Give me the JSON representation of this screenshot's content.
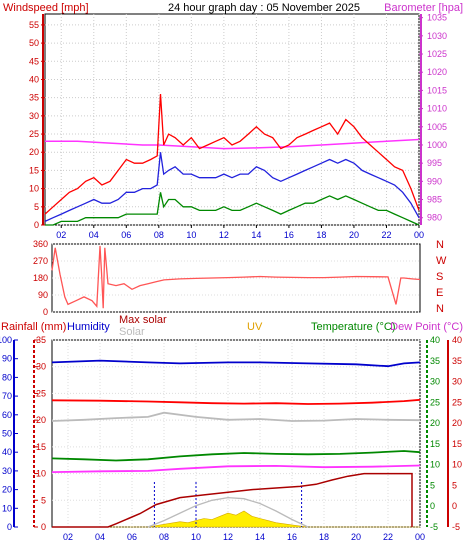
{
  "header": {
    "left_label": "Windspeed [mph]",
    "title": "24 hour graph day : 05 November 2025",
    "right_label": "Barometer [hpa]"
  },
  "labels": {
    "rainfall": "Rainfall (mm)",
    "humidity": "Humidity",
    "max_solar": "Max solar",
    "solar": "Solar",
    "uv": "UV",
    "temperature": "Temperature (°C)",
    "dew_point": "Dew Point (°C)"
  },
  "colors": {
    "wind_gust": "#ff0000",
    "wind_avg": "#2222dd",
    "wind_min": "#008800",
    "barometer": "#ff33ff",
    "direction": "#ff5555",
    "rain_axis": "#cc0000",
    "humidity": "#0000cc",
    "temperature": "#008800",
    "dew_point": "#ff0000",
    "solar": "#bbbbbb",
    "max_solar": "#aa0000",
    "uv": "#e0a000",
    "solar_fill": "#ffee00",
    "background": "#ffffff",
    "plot_bg": "#ffffff"
  },
  "chart_data": [
    {
      "type": "line",
      "panel": "wind",
      "x_ticks": [
        "02",
        "04",
        "06",
        "08",
        "10",
        "12",
        "14",
        "16",
        "18",
        "20",
        "22",
        "00"
      ],
      "y_left_ticks": [
        "0",
        "5",
        "10",
        "15",
        "20",
        "25",
        "30",
        "35",
        "40",
        "45",
        "50",
        "55"
      ],
      "y_left_range": [
        0,
        58
      ],
      "y_right_ticks": [
        "980",
        "985",
        "990",
        "995",
        "1000",
        "1005",
        "1010",
        "1015",
        "1020",
        "1025",
        "1030",
        "1035"
      ],
      "y_right_range": [
        978,
        1036
      ],
      "x_range": [
        1,
        24
      ],
      "series": [
        {
          "name": "Windspeed",
          "x": [
            1,
            1.5,
            2,
            2.5,
            3,
            3.5,
            4,
            4.5,
            5,
            5.5,
            6,
            6.5,
            7,
            7.5,
            7.9,
            8.1,
            8.3,
            8.6,
            9,
            9.5,
            10,
            10.5,
            11,
            11.5,
            12,
            12.5,
            13,
            13.5,
            14,
            14.5,
            15,
            15.5,
            16,
            16.5,
            17,
            17.5,
            18,
            18.5,
            19,
            19.5,
            20,
            20.5,
            21,
            21.5,
            22,
            22.5,
            23,
            23.5,
            24
          ],
          "y": [
            3,
            5,
            7,
            9,
            10,
            12,
            13,
            11,
            12,
            15,
            18,
            17,
            17,
            18,
            19,
            36,
            22,
            25,
            24,
            22,
            24,
            21,
            22,
            23,
            24,
            22,
            23,
            25,
            27,
            25,
            24,
            21,
            22,
            24,
            25,
            26,
            27,
            28,
            25,
            29,
            27,
            24,
            22,
            20,
            18,
            16,
            15,
            10,
            4
          ]
        },
        {
          "name": "Avg",
          "x": [
            1,
            1.5,
            2,
            2.5,
            3,
            3.5,
            4,
            4.5,
            5,
            5.5,
            6,
            6.5,
            7,
            7.5,
            7.9,
            8.1,
            8.3,
            8.6,
            9,
            9.5,
            10,
            10.5,
            11,
            11.5,
            12,
            12.5,
            13,
            13.5,
            14,
            14.5,
            15,
            15.5,
            16,
            16.5,
            17,
            17.5,
            18,
            18.5,
            19,
            19.5,
            20,
            20.5,
            21,
            21.5,
            22,
            22.5,
            23,
            23.5,
            24
          ],
          "y": [
            1,
            2,
            3,
            4,
            5,
            6,
            7,
            6,
            6,
            7,
            9,
            9,
            10,
            10,
            11,
            20,
            14,
            15,
            16,
            14,
            14,
            13,
            13,
            13,
            14,
            13,
            14,
            14,
            16,
            15,
            13,
            12,
            13,
            14,
            15,
            16,
            17,
            18,
            17,
            18,
            17,
            15,
            14,
            13,
            12,
            11,
            9,
            6,
            2
          ]
        },
        {
          "name": "Min",
          "x": [
            1,
            1.5,
            2,
            2.5,
            3,
            3.5,
            4,
            4.5,
            5,
            5.5,
            6,
            6.5,
            7,
            7.5,
            7.9,
            8.1,
            8.3,
            8.6,
            9,
            9.5,
            10,
            10.5,
            11,
            11.5,
            12,
            12.5,
            13,
            13.5,
            14,
            14.5,
            15,
            15.5,
            16,
            16.5,
            17,
            17.5,
            18,
            18.5,
            19,
            19.5,
            20,
            20.5,
            21,
            21.5,
            22,
            22.5,
            23,
            23.5,
            24
          ],
          "y": [
            0,
            0,
            1,
            1,
            1,
            2,
            2,
            2,
            2,
            2,
            3,
            3,
            3,
            3,
            3,
            9,
            5,
            7,
            7,
            5,
            5,
            4,
            4,
            4,
            5,
            4,
            4,
            5,
            6,
            5,
            4,
            3,
            4,
            5,
            6,
            6,
            7,
            8,
            7,
            8,
            7,
            6,
            5,
            4,
            4,
            3,
            2,
            1,
            0
          ]
        },
        {
          "name": "Barometer",
          "axis": "right",
          "x": [
            1,
            3,
            5,
            7,
            8,
            10,
            12,
            14,
            16,
            18,
            20,
            22,
            24
          ],
          "y": [
            1001,
            1001,
            1000.5,
            1000,
            1000,
            999.5,
            999,
            999.2,
            999.5,
            1000,
            1000.5,
            1001,
            1001.5
          ]
        }
      ]
    },
    {
      "type": "line",
      "panel": "wind_direction",
      "y_ticks": [
        "360",
        "270",
        "180",
        "90",
        "0"
      ],
      "y_range": [
        0,
        360
      ],
      "compass": [
        "N",
        "W",
        "S",
        "E",
        "N"
      ],
      "series": [
        {
          "name": "Direction",
          "x": [
            1,
            1.2,
            1.5,
            1.8,
            2,
            2.5,
            3,
            3.5,
            3.8,
            4,
            4.1,
            4.2,
            4.3,
            4.5,
            5,
            5.5,
            6,
            6.5,
            7,
            7.5,
            8,
            9,
            10,
            11,
            12,
            13,
            14,
            15,
            16,
            17,
            18,
            19,
            20,
            21,
            22,
            22.5,
            22.8,
            23,
            23.5,
            24
          ],
          "y": [
            220,
            340,
            200,
            80,
            40,
            60,
            80,
            60,
            30,
            350,
            200,
            20,
            340,
            150,
            140,
            150,
            120,
            140,
            150,
            160,
            170,
            175,
            178,
            180,
            182,
            185,
            188,
            185,
            183,
            182,
            182,
            185,
            188,
            187,
            186,
            40,
            180,
            180,
            175,
            172
          ]
        }
      ]
    },
    {
      "type": "line",
      "panel": "temperature_humidity",
      "x_ticks": [
        "02",
        "04",
        "06",
        "08",
        "10",
        "12",
        "14",
        "16",
        "18",
        "20",
        "22",
        "00"
      ],
      "rain_ticks": [
        "0",
        "5",
        "10",
        "15",
        "20",
        "25",
        "30",
        "35"
      ],
      "rain_range": [
        0,
        35
      ],
      "humidity_ticks": [
        "0",
        "10",
        "20",
        "30",
        "40",
        "50",
        "60",
        "70",
        "80",
        "90",
        "100"
      ],
      "humidity_range": [
        0,
        100
      ],
      "temp_ticks": [
        "-5",
        "0",
        "5",
        "10",
        "15",
        "20",
        "25",
        "30",
        "35",
        "40"
      ],
      "temp_range": [
        -5,
        40
      ],
      "series": [
        {
          "name": "Humidity",
          "x": [
            1,
            4,
            7,
            9,
            12,
            14,
            17,
            20,
            22,
            23,
            24
          ],
          "y": [
            88,
            89,
            88,
            87.5,
            88,
            88,
            87.5,
            87,
            86,
            87.5,
            88
          ]
        },
        {
          "name": "Temperature",
          "x": [
            1,
            3,
            5,
            7,
            9,
            11,
            13,
            15,
            17,
            19,
            21,
            23,
            24
          ],
          "y": [
            11.5,
            11.3,
            11.0,
            11.3,
            12.0,
            12.5,
            12.8,
            12.6,
            12.5,
            12.6,
            12.9,
            13.3,
            13.0
          ]
        },
        {
          "name": "Dew Point",
          "x": [
            1,
            4,
            7,
            9,
            11,
            13,
            15,
            17,
            19,
            21,
            23,
            24
          ],
          "y": [
            25.5,
            25.4,
            25.2,
            25.0,
            24.8,
            24.7,
            24.8,
            24.6,
            24.7,
            24.9,
            25.3,
            25.6
          ]
        },
        {
          "name": "Solar",
          "x": [
            1,
            3,
            5,
            7,
            8,
            10,
            12,
            14,
            16,
            18,
            20,
            22,
            24
          ],
          "y": [
            20.5,
            20.8,
            21.2,
            21.5,
            22.5,
            21.5,
            20.8,
            21.0,
            20.5,
            20.6,
            21.0,
            20.8,
            20.7
          ]
        },
        {
          "name": "Barometer (pink)",
          "x": [
            1,
            4,
            7,
            9,
            12,
            15,
            18,
            21,
            24
          ],
          "y": [
            8.2,
            8.4,
            8.5,
            9.0,
            9.6,
            9.7,
            9.4,
            9.5,
            9.8
          ]
        },
        {
          "name": "Rainfall",
          "x": [
            1,
            4.5,
            5,
            6.5,
            7.5,
            9,
            10.5,
            12,
            13.5,
            15,
            16.5,
            17.5,
            18.5,
            19.5,
            20.5,
            22,
            23.5,
            23.5
          ],
          "y": [
            0,
            0,
            0.6,
            2.5,
            4.2,
            5.5,
            6.0,
            6.5,
            7.0,
            7.3,
            7.6,
            8.0,
            8.8,
            9.5,
            10,
            10,
            10,
            0
          ]
        },
        {
          "name": "Max solar",
          "x": [
            7,
            8,
            9,
            10,
            11,
            12,
            13,
            14,
            15,
            16,
            17
          ],
          "y": [
            0,
            1.2,
            2.6,
            4.0,
            5.0,
            5.5,
            5.3,
            4.4,
            3.0,
            1.4,
            0
          ]
        },
        {
          "name": "UV fill",
          "x": [
            1,
            7,
            8,
            9,
            9.5,
            10,
            10.5,
            11,
            11.5,
            12,
            12.5,
            13,
            13.5,
            14,
            14.5,
            15,
            16,
            17,
            24
          ],
          "y": [
            0,
            0,
            0.5,
            1.0,
            0.8,
            1.2,
            1.6,
            1.4,
            2.0,
            2.6,
            2.2,
            3.0,
            2.0,
            1.6,
            1.2,
            0.8,
            0.4,
            0,
            0
          ]
        }
      ]
    }
  ]
}
